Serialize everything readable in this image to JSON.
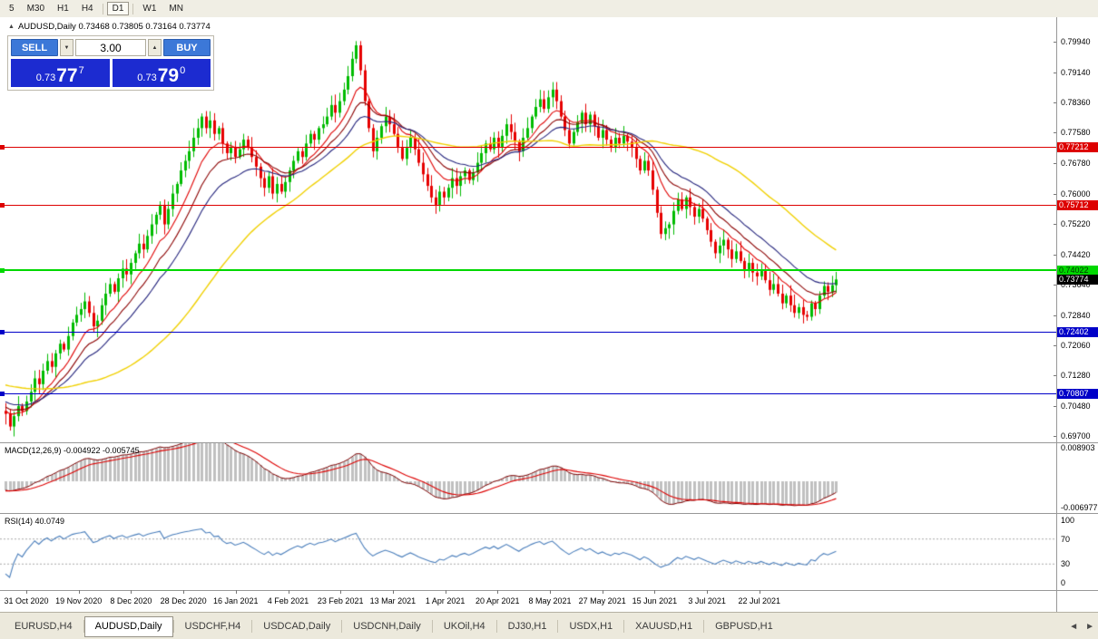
{
  "window": {
    "toolbar": {
      "timeframes": [
        "5",
        "M30",
        "H1",
        "H4",
        "D1",
        "W1",
        "MN"
      ],
      "active": "D1"
    }
  },
  "chart": {
    "title_icon": "▲",
    "title_text": "AUDUSD,Daily 0.73468 0.73805 0.73164 0.73774",
    "trade_panel": {
      "sell_label": "SELL",
      "buy_label": "BUY",
      "volume": "3.00",
      "volume_down_icon": "▼",
      "volume_up_icon": "▲",
      "bid_prefix": "0.73",
      "bid_big": "77",
      "bid_sup": "7",
      "ask_prefix": "0.73",
      "ask_big": "79",
      "ask_sup": "0",
      "button_color": "#3c78d8",
      "price_box_color": "#1c2bd0"
    },
    "price_scale": [
      "0.79940",
      "0.79140",
      "0.78360",
      "0.77580",
      "0.76780",
      "0.76000",
      "0.75220",
      "0.74420",
      "0.73640",
      "0.72840",
      "0.72060",
      "0.71280",
      "0.70480",
      "0.69700"
    ],
    "current_price_label": "0.73774",
    "current_price_badge_color": "#000000",
    "levels": [
      {
        "price": 0.77212,
        "label": "0.77212",
        "color": "#dd0000",
        "text": "#ffffff",
        "width": 1
      },
      {
        "price": 0.75712,
        "label": "0.75712",
        "color": "#dd0000",
        "text": "#ffffff",
        "width": 1
      },
      {
        "price": 0.74022,
        "label": "0.74022",
        "color": "#00d800",
        "text": "#003300",
        "width": 2
      },
      {
        "price": 0.72402,
        "label": "0.72402",
        "color": "#0000c8",
        "text": "#ffffff",
        "width": 1
      },
      {
        "price": 0.70807,
        "label": "0.70807",
        "color": "#0000c8",
        "text": "#ffffff",
        "width": 1
      }
    ],
    "dates": [
      "31 Oct 2020",
      "19 Nov 2020",
      "8 Dec 2020",
      "28 Dec 2020",
      "16 Jan 2021",
      "4 Feb 2021",
      "23 Feb 2021",
      "13 Mar 2021",
      "1 Apr 2021",
      "20 Apr 2021",
      "8 May 2021",
      "27 May 2021",
      "15 Jun 2021",
      "3 Jul 2021",
      "22 Jul 2021"
    ],
    "chart_data": {
      "type": "candlestick",
      "symbol": "AUDUSD",
      "timeframe": "Daily",
      "title": "AUDUSD,Daily",
      "ylim": [
        0.6954,
        0.8058
      ],
      "x_axis_labels": [
        "31 Oct 2020",
        "19 Nov 2020",
        "8 Dec 2020",
        "28 Dec 2020",
        "16 Jan 2021",
        "4 Feb 2021",
        "23 Feb 2021",
        "13 Mar 2021",
        "1 Apr 2021",
        "20 Apr 2021",
        "8 May 2021",
        "27 May 2021",
        "15 Jun 2021",
        "3 Jul 2021",
        "22 Jul 2021"
      ],
      "last_ohlc": {
        "open": "0.73468",
        "high": "0.73805",
        "low": "0.73164",
        "close": "0.73774"
      },
      "up_color": "#00bb00",
      "down_color": "#e60000",
      "closes": [
        0.7028,
        0.6995,
        0.7022,
        0.7048,
        0.7035,
        0.706,
        0.7085,
        0.712,
        0.7105,
        0.714,
        0.7165,
        0.715,
        0.7185,
        0.721,
        0.7195,
        0.723,
        0.7265,
        0.7285,
        0.73,
        0.732,
        0.729,
        0.7255,
        0.727,
        0.731,
        0.734,
        0.7365,
        0.7345,
        0.738,
        0.7405,
        0.739,
        0.742,
        0.7445,
        0.747,
        0.7455,
        0.749,
        0.752,
        0.7545,
        0.757,
        0.752,
        0.756,
        0.76,
        0.7625,
        0.766,
        0.7685,
        0.771,
        0.7745,
        0.777,
        0.78,
        0.777,
        0.779,
        0.7755,
        0.777,
        0.773,
        0.7705,
        0.772,
        0.7695,
        0.7715,
        0.774,
        0.772,
        0.7695,
        0.767,
        0.764,
        0.7615,
        0.7645,
        0.76,
        0.7625,
        0.7605,
        0.763,
        0.766,
        0.7685,
        0.771,
        0.7695,
        0.773,
        0.7755,
        0.774,
        0.777,
        0.778,
        0.78,
        0.783,
        0.781,
        0.784,
        0.787,
        0.7905,
        0.795,
        0.7985,
        0.792,
        0.784,
        0.777,
        0.771,
        0.7745,
        0.7775,
        0.78,
        0.778,
        0.7755,
        0.772,
        0.769,
        0.772,
        0.7745,
        0.7715,
        0.768,
        0.765,
        0.762,
        0.759,
        0.757,
        0.7605,
        0.759,
        0.7615,
        0.764,
        0.762,
        0.7645,
        0.766,
        0.7635,
        0.7655,
        0.768,
        0.7705,
        0.773,
        0.7715,
        0.7745,
        0.772,
        0.775,
        0.778,
        0.776,
        0.7735,
        0.771,
        0.7745,
        0.777,
        0.78,
        0.7825,
        0.7845,
        0.782,
        0.785,
        0.787,
        0.784,
        0.78,
        0.7765,
        0.773,
        0.776,
        0.7785,
        0.781,
        0.778,
        0.7805,
        0.7775,
        0.7745,
        0.7765,
        0.774,
        0.772,
        0.7745,
        0.773,
        0.775,
        0.7735,
        0.772,
        0.769,
        0.766,
        0.7685,
        0.766,
        0.761,
        0.755,
        0.7495,
        0.751,
        0.752,
        0.7555,
        0.7585,
        0.756,
        0.759,
        0.7565,
        0.754,
        0.756,
        0.7535,
        0.7505,
        0.7475,
        0.7445,
        0.7465,
        0.748,
        0.7455,
        0.743,
        0.745,
        0.7425,
        0.74,
        0.742,
        0.7395,
        0.7385,
        0.74,
        0.7375,
        0.735,
        0.7365,
        0.734,
        0.7315,
        0.7335,
        0.731,
        0.729,
        0.7305,
        0.7285,
        0.728,
        0.7315,
        0.73,
        0.7335,
        0.736,
        0.7345,
        0.7362,
        0.7377
      ],
      "moving_averages": [
        {
          "period": 10,
          "method": "ema",
          "color": "#e00000"
        },
        {
          "period": 16,
          "method": "ema",
          "color": "#8b0000"
        },
        {
          "period": 24,
          "method": "ema",
          "color": "#23237c"
        },
        {
          "period": 50,
          "method": "sma",
          "color": "#f0d000"
        }
      ],
      "horizontal_levels": [
        0.77212,
        0.75712,
        0.74022,
        0.72402,
        0.70807
      ]
    }
  },
  "macd": {
    "label": "MACD(12,26,9) -0.004922 -0.005745",
    "params": {
      "fast": 12,
      "slow": 26,
      "signal": 9
    },
    "value_main": "-0.004922",
    "value_signal": "-0.005745",
    "scale_top": "0.008903",
    "scale_bottom": "-0.006977",
    "histogram_color": "#c0c0c0",
    "signal_color": "#dd0000",
    "main_line_color": "#7d0000"
  },
  "rsi": {
    "label": "RSI(14) 40.0749",
    "period": 14,
    "value": "40.0749",
    "levels": [
      "100",
      "70",
      "30",
      "0"
    ],
    "line_color": "#4a7ebb"
  },
  "tabs": {
    "items": [
      "EURUSD,H4",
      "AUDUSD,Daily",
      "USDCHF,H4",
      "USDCAD,Daily",
      "USDCNH,Daily",
      "UKOil,H4",
      "DJ30,H1",
      "USDX,H1",
      "XAUUSD,H1",
      "GBPUSD,H1"
    ],
    "active_index": 1,
    "scroll_left_icon": "◄",
    "scroll_right_icon": "►"
  }
}
